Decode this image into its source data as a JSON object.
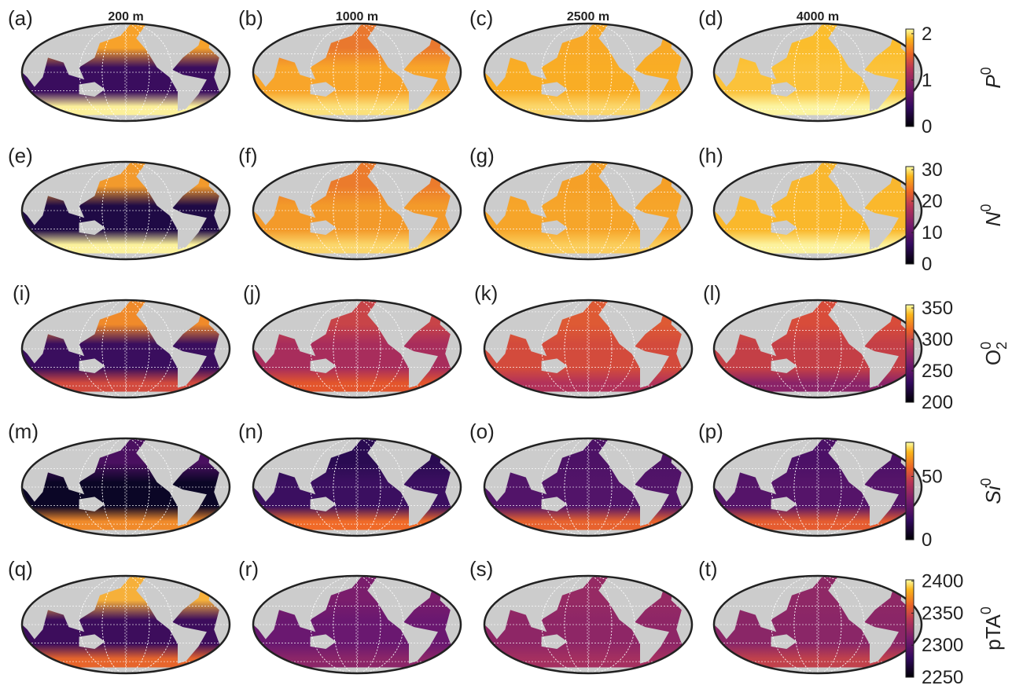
{
  "column_titles": [
    "200 m",
    "1000 m",
    "2500 m",
    "4000 m"
  ],
  "panels": [
    [
      "(a)",
      "(b)",
      "(c)",
      "(d)"
    ],
    [
      "(e)",
      "(f)",
      "(g)",
      "(h)"
    ],
    [
      "(i)",
      "(j)",
      "(k)",
      "(l)"
    ],
    [
      "(m)",
      "(n)",
      "(o)",
      "(p)"
    ],
    [
      "(q)",
      "(r)",
      "(s)",
      "(t)"
    ]
  ],
  "colorbars": [
    {
      "label": {
        "base": "P",
        "sup": "0"
      },
      "lim": [
        0,
        2.1
      ],
      "ticks": [
        0,
        1,
        2
      ]
    },
    {
      "label": {
        "base": "N",
        "sup": "0"
      },
      "lim": [
        0,
        31
      ],
      "ticks": [
        0,
        10,
        20,
        30
      ]
    },
    {
      "label": {
        "base": "O",
        "sub": "2",
        "sup": "0"
      },
      "lim": [
        200,
        355
      ],
      "ticks": [
        200,
        250,
        300,
        350
      ]
    },
    {
      "label": {
        "base": "Si",
        "sup": "0"
      },
      "lim": [
        0,
        77
      ],
      "ticks": [
        0,
        50
      ]
    },
    {
      "label": {
        "base": "pTA",
        "sup": "0"
      },
      "lim": [
        2250,
        2402
      ],
      "ticks": [
        2250,
        2300,
        2350,
        2400
      ]
    }
  ]
}
